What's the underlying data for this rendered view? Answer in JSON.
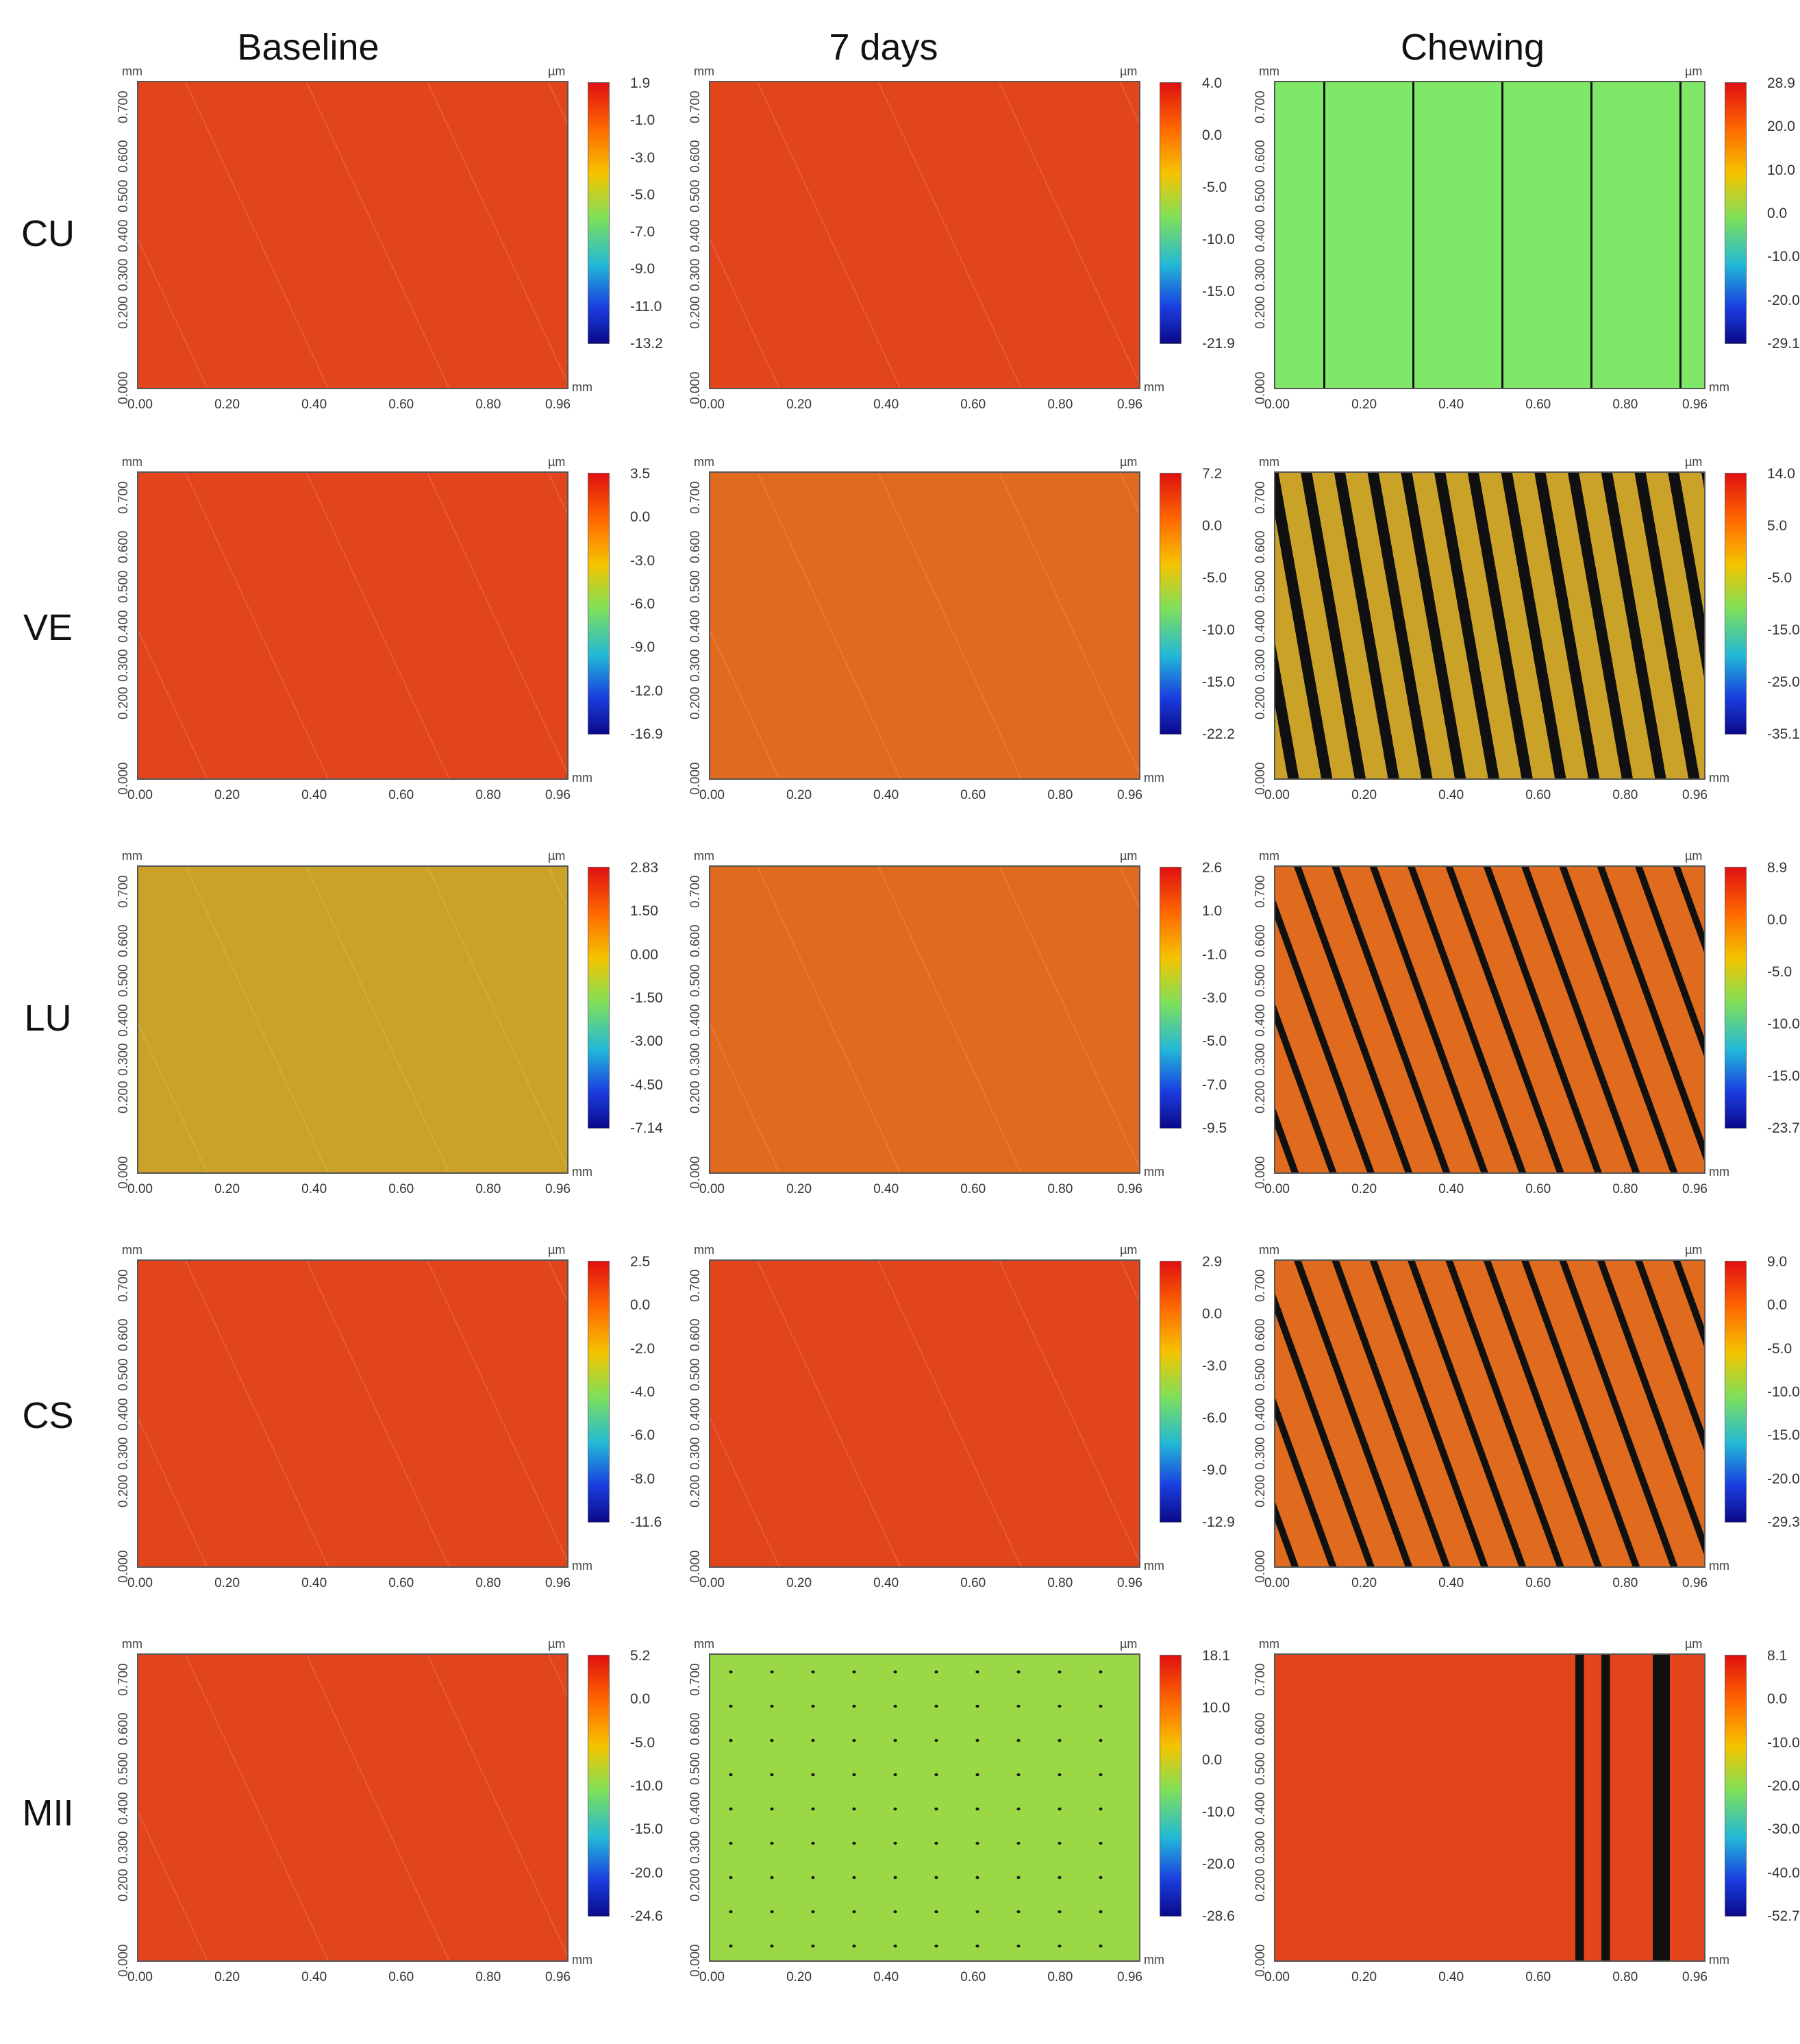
{
  "column_headers": [
    "Baseline",
    "7 days",
    "Chewing"
  ],
  "row_labels": [
    "CU",
    "VE",
    "LU",
    "CS",
    "MII"
  ],
  "axis": {
    "unit_mm": "mm",
    "unit_um": "µm",
    "x_ticks": [
      "0.00",
      "0.20",
      "0.40",
      "0.60",
      "0.80",
      "0.96"
    ],
    "y_ticks": [
      "0.000",
      "0.200",
      "0.300",
      "0.400",
      "0.500",
      "0.600",
      "0.700"
    ]
  },
  "colors": {
    "surface_red": "#e2441c",
    "surface_orange": "#e06a1e",
    "surface_mustard": "#c9a227",
    "surface_green": "#7fe869",
    "surface_lime": "#9bd846",
    "wear_black": "#101010"
  },
  "panels": [
    {
      "row": "CU",
      "col": "Baseline",
      "scale": [
        "1.9",
        "-1.0",
        "-3.0",
        "-5.0",
        "-7.0",
        "-9.0",
        "-11.0",
        "-13.2"
      ],
      "style": "red"
    },
    {
      "row": "CU",
      "col": "7 days",
      "scale": [
        "4.0",
        "0.0",
        "-5.0",
        "-10.0",
        "-15.0",
        "-21.9"
      ],
      "style": "red"
    },
    {
      "row": "CU",
      "col": "Chewing",
      "scale": [
        "28.9",
        "20.0",
        "10.0",
        "0.0",
        "-10.0",
        "-20.0",
        "-29.1"
      ],
      "style": "green_cu"
    },
    {
      "row": "VE",
      "col": "Baseline",
      "scale": [
        "3.5",
        "0.0",
        "-3.0",
        "-6.0",
        "-9.0",
        "-12.0",
        "-16.9"
      ],
      "style": "red"
    },
    {
      "row": "VE",
      "col": "7 days",
      "scale": [
        "7.2",
        "0.0",
        "-5.0",
        "-10.0",
        "-15.0",
        "-22.2"
      ],
      "style": "orange"
    },
    {
      "row": "VE",
      "col": "Chewing",
      "scale": [
        "14.0",
        "5.0",
        "-5.0",
        "-15.0",
        "-25.0",
        "-35.1"
      ],
      "style": "striped_mustard"
    },
    {
      "row": "LU",
      "col": "Baseline",
      "scale": [
        "2.83",
        "1.50",
        "0.00",
        "-1.50",
        "-3.00",
        "-4.50",
        "-7.14"
      ],
      "style": "mustard"
    },
    {
      "row": "LU",
      "col": "7 days",
      "scale": [
        "2.6",
        "1.0",
        "-1.0",
        "-3.0",
        "-5.0",
        "-7.0",
        "-9.5"
      ],
      "style": "orange"
    },
    {
      "row": "LU",
      "col": "Chewing",
      "scale": [
        "8.9",
        "0.0",
        "-5.0",
        "-10.0",
        "-15.0",
        "-23.7"
      ],
      "style": "striped_orange"
    },
    {
      "row": "CS",
      "col": "Baseline",
      "scale": [
        "2.5",
        "0.0",
        "-2.0",
        "-4.0",
        "-6.0",
        "-8.0",
        "-11.6"
      ],
      "style": "red"
    },
    {
      "row": "CS",
      "col": "7 days",
      "scale": [
        "2.9",
        "0.0",
        "-3.0",
        "-6.0",
        "-9.0",
        "-12.9"
      ],
      "style": "red"
    },
    {
      "row": "CS",
      "col": "Chewing",
      "scale": [
        "9.0",
        "0.0",
        "-5.0",
        "-10.0",
        "-15.0",
        "-20.0",
        "-29.3"
      ],
      "style": "striped_orange"
    },
    {
      "row": "MII",
      "col": "Baseline",
      "scale": [
        "5.2",
        "0.0",
        "-5.0",
        "-10.0",
        "-15.0",
        "-20.0",
        "-24.6"
      ],
      "style": "red"
    },
    {
      "row": "MII",
      "col": "7 days",
      "scale": [
        "18.1",
        "10.0",
        "0.0",
        "-10.0",
        "-20.0",
        "-28.6"
      ],
      "style": "lime"
    },
    {
      "row": "MII",
      "col": "Chewing",
      "scale": [
        "8.1",
        "0.0",
        "-10.0",
        "-20.0",
        "-30.0",
        "-40.0",
        "-52.7"
      ],
      "style": "red_striped"
    }
  ]
}
